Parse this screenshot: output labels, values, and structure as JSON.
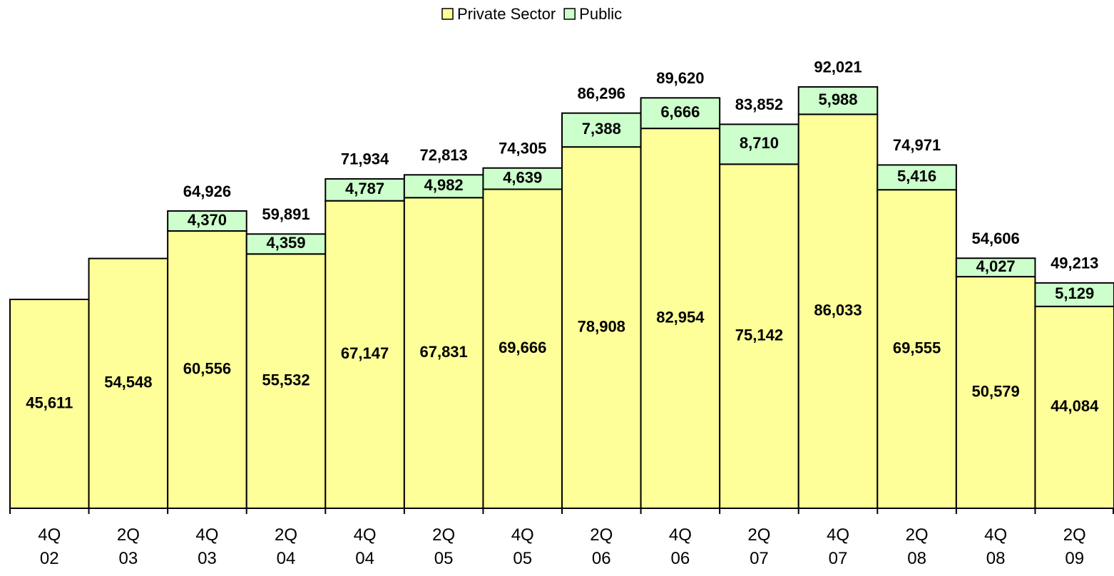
{
  "chart_data": {
    "type": "stacked_bar",
    "categories": [
      "4Q 02",
      "2Q 03",
      "4Q 03",
      "2Q 04",
      "4Q 04",
      "2Q 05",
      "4Q 05",
      "2Q 06",
      "4Q 06",
      "2Q 07",
      "4Q 07",
      "2Q 08",
      "4Q 08",
      "2Q 09"
    ],
    "series": [
      {
        "name": "Private Sector",
        "color": "#ffff99",
        "values": [
          45611,
          54548,
          60556,
          55532,
          67147,
          67831,
          69666,
          78908,
          82954,
          75142,
          86033,
          69555,
          50579,
          44084
        ],
        "value_labels": [
          "45,611",
          "54,548",
          "60,556",
          "55,532",
          "67,147",
          "67,831",
          "69,666",
          "78,908",
          "82,954",
          "75,142",
          "86,033",
          "69,555",
          "50,579",
          "44,084"
        ]
      },
      {
        "name": "Public",
        "color": "#ccffcc",
        "values": [
          null,
          null,
          4370,
          4359,
          4787,
          4982,
          4639,
          7388,
          6666,
          8710,
          5988,
          5416,
          4027,
          5129
        ],
        "value_labels": [
          null,
          null,
          "4,370",
          "4,359",
          "4,787",
          "4,982",
          "4,639",
          "7,388",
          "6,666",
          "8,710",
          "5,988",
          "5,416",
          "4,027",
          "5,129"
        ]
      }
    ],
    "totals": [
      null,
      null,
      64926,
      59891,
      71934,
      72813,
      74305,
      86296,
      89620,
      83852,
      92021,
      74971,
      54606,
      49213
    ],
    "total_labels": [
      null,
      null,
      "64,926",
      "59,891",
      "71,934",
      "72,813",
      "74,305",
      "86,296",
      "89,620",
      "83,852",
      "92,021",
      "74,971",
      "54,606",
      "49,213"
    ],
    "ylim": [
      0,
      110000
    ],
    "legend": "top"
  }
}
